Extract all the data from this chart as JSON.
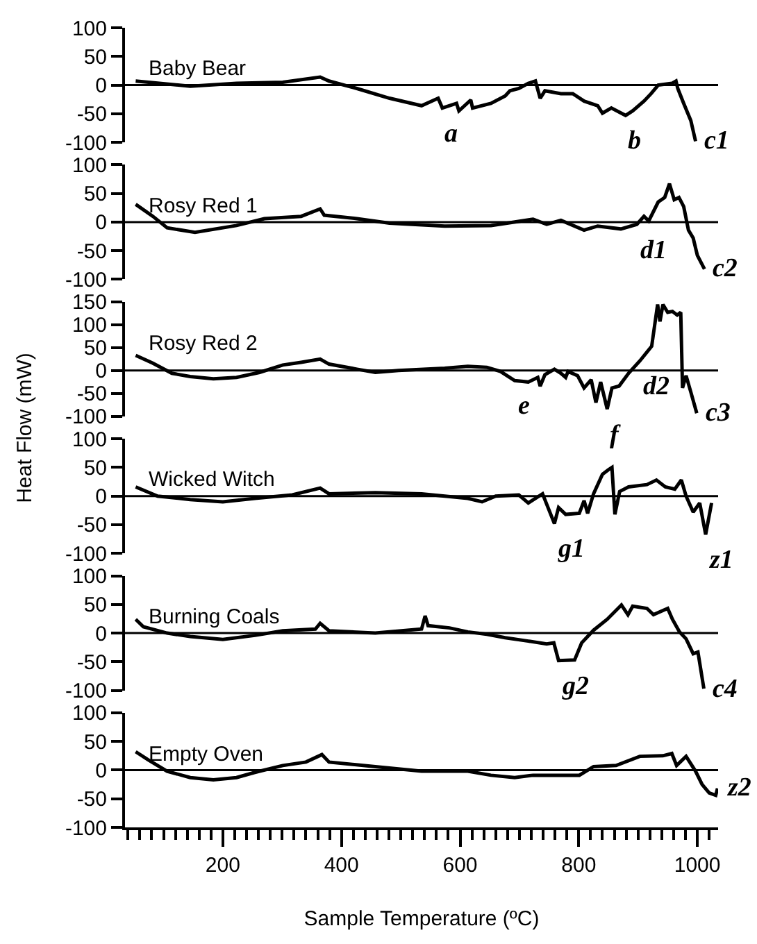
{
  "chart_data": [
    {
      "type": "line",
      "series": [
        {
          "name": "Baby Bear",
          "color": "#000000",
          "x": [
            53,
            145,
            223,
            301,
            364,
            379,
            426,
            481,
            535,
            563,
            570,
            594,
            598,
            618,
            621,
            652,
            676,
            684,
            699,
            715,
            727,
            735,
            743,
            770,
            790,
            809,
            832,
            840,
            855,
            879,
            891,
            910,
            922,
            934,
            957,
            964,
            967,
            977,
            989,
            997
          ],
          "values": [
            7,
            -2,
            3,
            5,
            14,
            7,
            -6,
            -23,
            -36,
            -23,
            -40,
            -32,
            -45,
            -26,
            -40,
            -32,
            -19,
            -10,
            -6,
            3,
            7,
            -23,
            -10,
            -15,
            -15,
            -28,
            -36,
            -49,
            -40,
            -53,
            -45,
            -28,
            -15,
            0,
            3,
            7,
            -6,
            -32,
            -62,
            -98
          ]
        }
      ],
      "xlim": [
        35,
        1035
      ],
      "tick_labels": "y",
      "ylim": [
        -100,
        100
      ],
      "yticks": [
        -100,
        -50,
        0,
        50,
        100
      ],
      "line_style": "solid",
      "ref_lines": [
        {
          "axis": "y",
          "value": 0,
          "color": "#000000"
        }
      ],
      "annotations": [
        {
          "text": "a",
          "x": 570,
          "y": -40
        },
        {
          "text": "b",
          "x": 879,
          "y": -53
        },
        {
          "text": "c1",
          "x": 997,
          "y": -98
        }
      ]
    },
    {
      "type": "line",
      "series": [
        {
          "name": "Rosy Red 1",
          "color": "#000000",
          "x": [
            53,
            82,
            106,
            153,
            223,
            270,
            332,
            364,
            371,
            426,
            481,
            574,
            652,
            723,
            746,
            770,
            809,
            832,
            871,
            898,
            910,
            918,
            934,
            945,
            953,
            961,
            969,
            977,
            985,
            993,
            1000,
            1012
          ],
          "values": [
            31,
            10,
            -10,
            -18,
            -6,
            6,
            10,
            23,
            12,
            6,
            -2,
            -7,
            -6,
            5,
            -4,
            3,
            -14,
            -7,
            -12,
            -4,
            10,
            2,
            35,
            43,
            67,
            39,
            43,
            27,
            -14,
            -28,
            -58,
            -82
          ]
        }
      ],
      "xlim": [
        35,
        1035
      ],
      "tick_labels": "y",
      "ylim": [
        -100,
        100
      ],
      "yticks": [
        -100,
        -50,
        0,
        50,
        100
      ],
      "line_style": "solid",
      "ref_lines": [
        {
          "axis": "y",
          "value": 0,
          "color": "#000000"
        }
      ],
      "annotations": [
        {
          "text": "d1",
          "x": 898,
          "y": -4
        },
        {
          "text": "c2",
          "x": 1012,
          "y": -82
        }
      ]
    },
    {
      "type": "line",
      "ylabel": "Heat Flow (mW)",
      "series": [
        {
          "name": "Rosy Red 2",
          "color": "#000000",
          "x": [
            53,
            82,
            114,
            145,
            184,
            223,
            262,
            301,
            332,
            364,
            379,
            426,
            457,
            496,
            574,
            613,
            645,
            668,
            692,
            715,
            731,
            735,
            743,
            759,
            770,
            778,
            782,
            798,
            809,
            821,
            829,
            837,
            848,
            856,
            868,
            884,
            903,
            923,
            933,
            937,
            942,
            950,
            958,
            966,
            972,
            975,
            981,
            989,
            999
          ],
          "values": [
            33,
            16,
            -6,
            -13,
            -18,
            -15,
            -4,
            12,
            18,
            25,
            14,
            3,
            -4,
            0,
            5,
            9,
            7,
            -2,
            -22,
            -25,
            -15,
            -34,
            -9,
            3,
            -6,
            -15,
            -2,
            -11,
            -38,
            -20,
            -70,
            -25,
            -84,
            -38,
            -34,
            -6,
            21,
            53,
            144,
            107,
            144,
            127,
            129,
            121,
            127,
            -38,
            -11,
            -47,
            -93
          ]
        }
      ],
      "xlim": [
        35,
        1035
      ],
      "tick_labels": "y",
      "ylim": [
        -100,
        150
      ],
      "yticks": [
        -100,
        -50,
        0,
        50,
        100,
        150
      ],
      "line_style": "solid",
      "ref_lines": [
        {
          "axis": "y",
          "value": 0,
          "color": "#000000"
        }
      ],
      "annotations": [
        {
          "text": "e",
          "x": 692,
          "y": -22
        },
        {
          "text": "d2",
          "x": 903,
          "y": 21
        },
        {
          "text": "c3",
          "x": 999,
          "y": -93
        },
        {
          "text": "f",
          "x": 848,
          "y": -84
        }
      ]
    },
    {
      "type": "line",
      "series": [
        {
          "name": "Wicked Witch",
          "color": "#000000",
          "x": [
            53,
            90,
            145,
            200,
            254,
            317,
            364,
            379,
            457,
            535,
            613,
            637,
            660,
            699,
            715,
            739,
            759,
            766,
            778,
            801,
            809,
            815,
            825,
            840,
            850,
            856,
            861,
            869,
            884,
            915,
            931,
            946,
            962,
            973,
            981,
            993,
            1004,
            1014,
            1024
          ],
          "values": [
            16,
            0,
            -6,
            -10,
            -4,
            2,
            14,
            4,
            6,
            4,
            -4,
            -10,
            0,
            2,
            -12,
            4,
            -48,
            -20,
            -32,
            -30,
            -8,
            -30,
            4,
            38,
            46,
            50,
            -32,
            8,
            16,
            20,
            28,
            16,
            12,
            28,
            0,
            -28,
            -12,
            -67,
            -12
          ]
        }
      ],
      "xlim": [
        35,
        1035
      ],
      "tick_labels": "y",
      "ylim": [
        -100,
        100
      ],
      "yticks": [
        -100,
        -50,
        0,
        50,
        100
      ],
      "line_style": "solid",
      "ref_lines": [
        {
          "axis": "y",
          "value": 0,
          "color": "#000000"
        }
      ],
      "annotations": [
        {
          "text": "g1",
          "x": 759,
          "y": -48
        },
        {
          "text": "z1",
          "x": 1014,
          "y": -67
        }
      ]
    },
    {
      "type": "line",
      "series": [
        {
          "name": "Burning Coals",
          "color": "#000000",
          "x": [
            53,
            66,
            106,
            145,
            200,
            254,
            301,
            356,
            364,
            379,
            457,
            535,
            541,
            546,
            582,
            613,
            645,
            676,
            715,
            746,
            758,
            766,
            793,
            805,
            825,
            848,
            872,
            883,
            891,
            915,
            926,
            950,
            958,
            970,
            981,
            993,
            1001,
            1011
          ],
          "values": [
            24,
            11,
            0,
            -6,
            -11,
            -4,
            4,
            7,
            17,
            4,
            0,
            7,
            30,
            13,
            9,
            2,
            -2,
            -8,
            -14,
            -19,
            -17,
            -48,
            -47,
            -17,
            5,
            24,
            49,
            32,
            47,
            43,
            32,
            43,
            24,
            2,
            -10,
            -36,
            -33,
            -97
          ]
        }
      ],
      "xlim": [
        35,
        1035
      ],
      "tick_labels": "y",
      "ylim": [
        -100,
        100
      ],
      "yticks": [
        -100,
        -50,
        0,
        50,
        100
      ],
      "line_style": "solid",
      "ref_lines": [
        {
          "axis": "y",
          "value": 0,
          "color": "#000000"
        }
      ],
      "annotations": [
        {
          "text": "g2",
          "x": 766,
          "y": -48
        },
        {
          "text": "c4",
          "x": 1011,
          "y": -97
        }
      ]
    },
    {
      "type": "line",
      "xlabel": "Sample Temperature (ºC)",
      "series": [
        {
          "name": "Empty Oven",
          "color": "#000000",
          "x": [
            53,
            74,
            106,
            145,
            184,
            223,
            254,
            301,
            340,
            367,
            379,
            457,
            535,
            613,
            652,
            692,
            723,
            770,
            801,
            825,
            863,
            903,
            942,
            957,
            965,
            981,
            997,
            1008,
            1020,
            1031,
            1034
          ],
          "values": [
            32,
            18,
            -2,
            -13,
            -17,
            -13,
            -4,
            8,
            14,
            27,
            14,
            6,
            -2,
            -2,
            -9,
            -13,
            -9,
            -9,
            -9,
            6,
            8,
            24,
            25,
            29,
            8,
            24,
            -2,
            -25,
            -40,
            -44,
            -32
          ]
        }
      ],
      "xlim": [
        35,
        1035
      ],
      "ylim": [
        -100,
        100
      ],
      "yticks": [
        -100,
        -50,
        0,
        50,
        100
      ],
      "line_style": "solid",
      "xticks": [
        {
          "value": 40,
          "label": null
        },
        {
          "value": 60,
          "label": null
        },
        {
          "value": 80,
          "label": null
        },
        {
          "value": 100,
          "label": null
        },
        {
          "value": 120,
          "label": null
        },
        {
          "value": 140,
          "label": null
        },
        {
          "value": 160,
          "label": null
        },
        {
          "value": 180,
          "label": null
        },
        200,
        {
          "value": 220,
          "label": null
        },
        {
          "value": 240,
          "label": null
        },
        {
          "value": 260,
          "label": null
        },
        {
          "value": 280,
          "label": null
        },
        {
          "value": 300,
          "label": null
        },
        {
          "value": 320,
          "label": null
        },
        {
          "value": 340,
          "label": null
        },
        {
          "value": 360,
          "label": null
        },
        {
          "value": 380,
          "label": null
        },
        400,
        {
          "value": 420,
          "label": null
        },
        {
          "value": 440,
          "label": null
        },
        {
          "value": 460,
          "label": null
        },
        {
          "value": 480,
          "label": null
        },
        {
          "value": 500,
          "label": null
        },
        {
          "value": 520,
          "label": null
        },
        {
          "value": 540,
          "label": null
        },
        {
          "value": 560,
          "label": null
        },
        {
          "value": 580,
          "label": null
        },
        600,
        {
          "value": 620,
          "label": null
        },
        {
          "value": 640,
          "label": null
        },
        {
          "value": 660,
          "label": null
        },
        {
          "value": 680,
          "label": null
        },
        {
          "value": 700,
          "label": null
        },
        {
          "value": 720,
          "label": null
        },
        {
          "value": 740,
          "label": null
        },
        {
          "value": 760,
          "label": null
        },
        {
          "value": 780,
          "label": null
        },
        800,
        {
          "value": 820,
          "label": null
        },
        {
          "value": 840,
          "label": null
        },
        {
          "value": 860,
          "label": null
        },
        {
          "value": 880,
          "label": null
        },
        {
          "value": 900,
          "label": null
        },
        {
          "value": 920,
          "label": null
        },
        {
          "value": 940,
          "label": null
        },
        {
          "value": 960,
          "label": null
        },
        {
          "value": 980,
          "label": null
        },
        1000,
        {
          "value": 1020,
          "label": null
        }
      ],
      "ref_lines": [
        {
          "axis": "y",
          "value": 0,
          "color": "#000000"
        }
      ],
      "annotations": [
        {
          "text": "z2",
          "x": 1034,
          "y": -32
        }
      ]
    }
  ]
}
